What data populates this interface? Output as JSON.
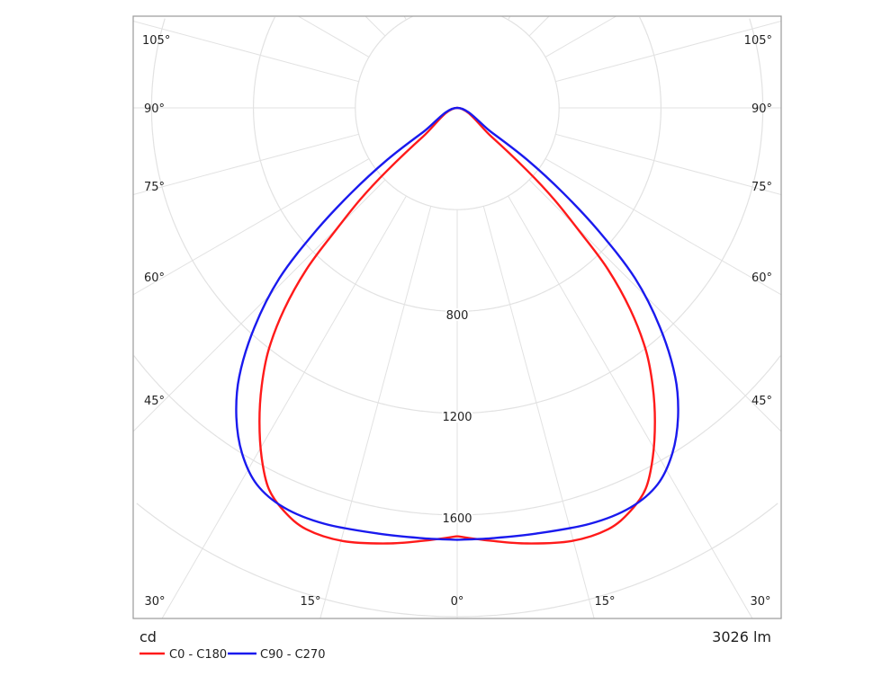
{
  "chart_data": {
    "type": "polar",
    "title": "",
    "unit_label": "cd",
    "flux_label": "3026 lm",
    "radial_ticks": [
      400,
      800,
      1200,
      1600,
      2000
    ],
    "radial_tick_labels": [
      "800",
      "1200",
      "1600"
    ],
    "angle_labels": {
      "left": [
        "105°",
        "90°",
        "75°",
        "60°",
        "45°"
      ],
      "right": [
        "105°",
        "90°",
        "75°",
        "60°",
        "45°"
      ],
      "bottom": [
        "30°",
        "15°",
        "0°",
        "15°",
        "30°"
      ]
    },
    "angle_grid_step_deg": 15,
    "legend_position": "bottom-left",
    "series": [
      {
        "name": "C0 - C180",
        "color": "#ff1a1a",
        "points_angle_cd": [
          [
            0,
            1684
          ],
          [
            4.5,
            1707
          ],
          [
            9.1,
            1734
          ],
          [
            14.8,
            1761
          ],
          [
            19.7,
            1759
          ],
          [
            23.2,
            1725
          ],
          [
            26.3,
            1670
          ],
          [
            29.2,
            1574
          ],
          [
            32.2,
            1457
          ],
          [
            35.1,
            1335
          ],
          [
            37.9,
            1205
          ],
          [
            40.6,
            1044
          ],
          [
            43.0,
            868
          ],
          [
            44.6,
            693
          ],
          [
            46.6,
            524
          ],
          [
            48.1,
            369
          ],
          [
            49.9,
            175
          ],
          [
            90,
            0
          ]
        ]
      },
      {
        "name": "C90 - C270",
        "color": "#1a1aee",
        "points_angle_cd": [
          [
            0,
            1698
          ],
          [
            4.5,
            1697
          ],
          [
            10.5,
            1702
          ],
          [
            17.7,
            1716
          ],
          [
            23.4,
            1712
          ],
          [
            28.0,
            1676
          ],
          [
            31.9,
            1599
          ],
          [
            35.5,
            1493
          ],
          [
            39.0,
            1360
          ],
          [
            42.7,
            1174
          ],
          [
            46.2,
            967
          ],
          [
            48.9,
            739
          ],
          [
            51.2,
            534
          ],
          [
            53.4,
            342
          ],
          [
            54.6,
            164
          ],
          [
            90,
            0
          ]
        ]
      }
    ]
  }
}
